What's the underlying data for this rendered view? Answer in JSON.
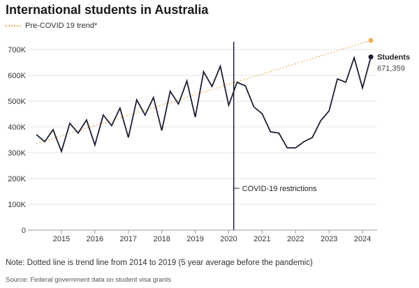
{
  "chart_data": {
    "type": "line",
    "title": "International students in Australia",
    "legend": [
      {
        "label": "Pre-COVID 19 trend*",
        "color": "#e8b25a",
        "style": "dotted"
      }
    ],
    "ylim": [
      0,
      700000
    ],
    "yticks": [
      {
        "v": 0,
        "label": "0"
      },
      {
        "v": 100000,
        "label": "100K"
      },
      {
        "v": 200000,
        "label": "200K"
      },
      {
        "v": 300000,
        "label": "300K"
      },
      {
        "v": 400000,
        "label": "400K"
      },
      {
        "v": 500000,
        "label": "500K"
      },
      {
        "v": 600000,
        "label": "600K"
      },
      {
        "v": 700000,
        "label": "700K"
      }
    ],
    "xlim": [
      2014.0,
      2024.6
    ],
    "xticks": [
      "2015",
      "2016",
      "2017",
      "2018",
      "2019",
      "2020",
      "2021",
      "2022",
      "2023",
      "2024"
    ],
    "series": [
      {
        "name": "Students",
        "color": "#1c1f33",
        "x_start": 2014.25,
        "x_step": 0.25,
        "values": [
          370,
          343,
          389,
          305,
          414,
          376,
          427,
          330,
          446,
          405,
          473,
          359,
          505,
          446,
          514,
          386,
          538,
          489,
          578,
          438,
          614,
          557,
          635,
          484,
          573,
          559,
          478,
          451,
          381,
          376,
          319,
          319,
          343,
          359,
          424,
          462,
          586,
          573,
          668,
          551,
          671.359
        ]
      }
    ],
    "values_unit": "thousands",
    "trend": {
      "x": [
        2014.25,
        2024.25
      ],
      "y": [
        335,
        735
      ]
    },
    "annotations": {
      "covid_x": 2020.15,
      "covid_label": "COVID-19 restrictions",
      "end_label": "Students",
      "end_value": "671,359"
    },
    "note": "Note: Dotted line is trend line from 2014 to 2019 (5 year average before the pandemic)",
    "source": "Source: Federal government data on student visa grants"
  }
}
